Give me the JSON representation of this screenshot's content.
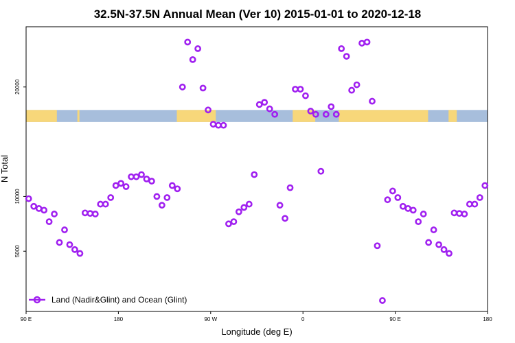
{
  "chart_data": {
    "type": "scatter",
    "title": "32.5N-37.5N Annual Mean (Ver 10)   2015-01-01 to 2020-12-18",
    "xlabel": "Longitude (deg E)",
    "ylabel": "N Total",
    "x_ticks": [
      {
        "value": 0,
        "label": "90 E"
      },
      {
        "value": 90,
        "label": "180"
      },
      {
        "value": 180,
        "label": "90 W"
      },
      {
        "value": 270,
        "label": "0"
      },
      {
        "value": 360,
        "label": "90 E"
      },
      {
        "value": 450,
        "label": "180"
      }
    ],
    "y_ticks": [
      5000,
      10000,
      20000
    ],
    "xlim": [
      0,
      450
    ],
    "ylim": [
      -500,
      25500
    ],
    "grid": false,
    "legend_position": "bottom-left",
    "marker_color": "#a020f0",
    "series": [
      {
        "name": "Land (Nadir&Glint) and Ocean (Glint)",
        "points": [
          [
            2.5,
            9800
          ],
          [
            7.5,
            9100
          ],
          [
            12.5,
            8900
          ],
          [
            17.5,
            8750
          ],
          [
            22.5,
            7700
          ],
          [
            27.5,
            8400
          ],
          [
            32.5,
            5800
          ],
          [
            37.5,
            6950
          ],
          [
            42.5,
            5600
          ],
          [
            47.5,
            5150
          ],
          [
            52.5,
            4800
          ],
          [
            57.5,
            8500
          ],
          [
            62.5,
            8450
          ],
          [
            67.5,
            8400
          ],
          [
            72.5,
            9300
          ],
          [
            77.5,
            9300
          ],
          [
            82.5,
            9900
          ],
          [
            87.5,
            11000
          ],
          [
            92.5,
            11200
          ],
          [
            97.5,
            10900
          ],
          [
            102.5,
            11800
          ],
          [
            107.5,
            11800
          ],
          [
            112.5,
            12000
          ],
          [
            117.5,
            11600
          ],
          [
            122.5,
            11400
          ],
          [
            127.5,
            10000
          ],
          [
            132.5,
            9200
          ],
          [
            137.5,
            9900
          ],
          [
            142.5,
            11000
          ],
          [
            147.5,
            10700
          ],
          [
            152.5,
            20000
          ],
          [
            157.5,
            24100
          ],
          [
            162.5,
            22500
          ],
          [
            167.5,
            23500
          ],
          [
            172.5,
            19900
          ],
          [
            177.5,
            17900
          ],
          [
            182.5,
            16600
          ],
          [
            187.5,
            16500
          ],
          [
            192.5,
            16500
          ],
          [
            197.5,
            7500
          ],
          [
            202.5,
            7700
          ],
          [
            207.5,
            8600
          ],
          [
            212.5,
            9000
          ],
          [
            217.5,
            9300
          ],
          [
            222.5,
            12000
          ],
          [
            227.5,
            18400
          ],
          [
            232.5,
            18600
          ],
          [
            237.5,
            18000
          ],
          [
            242.5,
            17500
          ],
          [
            247.5,
            9200
          ],
          [
            252.5,
            8000
          ],
          [
            257.5,
            10800
          ],
          [
            262.5,
            19800
          ],
          [
            267.5,
            19800
          ],
          [
            272.5,
            19200
          ],
          [
            277.5,
            17800
          ],
          [
            282.5,
            17500
          ],
          [
            287.5,
            12300
          ],
          [
            292.5,
            17500
          ],
          [
            297.5,
            18200
          ],
          [
            302.5,
            17500
          ],
          [
            307.5,
            23500
          ],
          [
            312.5,
            22800
          ],
          [
            317.5,
            19700
          ],
          [
            322.5,
            20200
          ],
          [
            327.5,
            24000
          ],
          [
            332.5,
            24100
          ],
          [
            337.5,
            18700
          ],
          [
            342.5,
            5500
          ],
          [
            347.5,
            500
          ],
          [
            352.5,
            9700
          ],
          [
            357.5,
            10500
          ],
          [
            362.5,
            9900
          ],
          [
            367.5,
            9100
          ],
          [
            372.5,
            8900
          ],
          [
            377.5,
            8750
          ],
          [
            382.5,
            7700
          ],
          [
            387.5,
            8400
          ],
          [
            392.5,
            5800
          ],
          [
            397.5,
            6950
          ],
          [
            402.5,
            5600
          ],
          [
            407.5,
            5150
          ],
          [
            412.5,
            4800
          ],
          [
            417.5,
            8500
          ],
          [
            422.5,
            8450
          ],
          [
            427.5,
            8400
          ],
          [
            432.5,
            9300
          ],
          [
            437.5,
            9300
          ],
          [
            442.5,
            9900
          ],
          [
            447.5,
            11000
          ]
        ]
      }
    ],
    "land_mask_band": {
      "y_range": [
        16800,
        17900
      ],
      "ocean_color": "#a7bedc",
      "land_color": "#f7d77a",
      "land_segments": [
        [
          0,
          30
        ],
        [
          50,
          52
        ],
        [
          147,
          185
        ],
        [
          260,
          282
        ],
        [
          305,
          392
        ],
        [
          412,
          420
        ]
      ]
    }
  }
}
